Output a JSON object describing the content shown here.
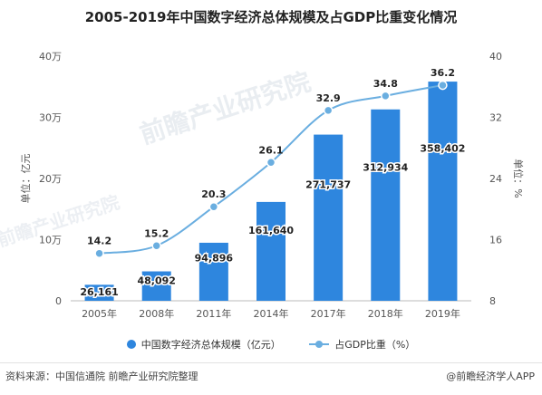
{
  "title": "2005-2019年中国数字经济总体规模及占GDP比重变化情况",
  "chart_data": {
    "type": "bar",
    "categories": [
      "2005年",
      "2008年",
      "2011年",
      "2014年",
      "2017年",
      "2018年",
      "2019年"
    ],
    "series": [
      {
        "name": "中国数字经济总体规模（亿元）",
        "type": "bar",
        "axis": "left",
        "values": [
          26161,
          48092,
          94896,
          161640,
          271737,
          312934,
          358402
        ],
        "labels": [
          "26,161",
          "48,092",
          "94,896",
          "161,640",
          "271,737",
          "312,934",
          "358,402"
        ],
        "color": "#2e86de"
      },
      {
        "name": "占GDP比重（%）",
        "type": "line",
        "axis": "right",
        "values": [
          14.2,
          15.2,
          20.3,
          26.1,
          32.9,
          34.8,
          36.2
        ],
        "labels": [
          "14.2",
          "15.2",
          "20.3",
          "26.1",
          "32.9",
          "34.8",
          "36.2"
        ],
        "color": "#6aaee0"
      }
    ],
    "y_left": {
      "label": "单位：亿元",
      "range": [
        0,
        400000
      ],
      "ticks": [
        0,
        100000,
        200000,
        300000,
        400000
      ],
      "tick_labels": [
        "0",
        "10万",
        "20万",
        "30万",
        "40万"
      ]
    },
    "y_right": {
      "label": "单位：%",
      "range": [
        8,
        40
      ],
      "ticks": [
        8,
        16,
        24,
        32,
        40
      ],
      "tick_labels": [
        "8",
        "16",
        "24",
        "32",
        "40"
      ]
    },
    "grid": false,
    "legend_position": "bottom"
  },
  "source": "资料来源：中国信通院 前瞻产业研究院整理",
  "brand": "@前瞻经济学人APP",
  "watermark": "前瞻产业研究院"
}
